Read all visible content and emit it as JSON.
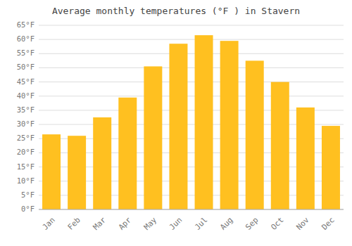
{
  "chart_data": {
    "type": "bar",
    "title": "Average monthly temperatures (°F ) in Stavern",
    "categories": [
      "Jan",
      "Feb",
      "Mar",
      "Apr",
      "May",
      "Jun",
      "Jul",
      "Aug",
      "Sep",
      "Oct",
      "Nov",
      "Dec"
    ],
    "values": [
      26.5,
      26.0,
      32.5,
      39.5,
      50.5,
      58.5,
      61.5,
      59.5,
      52.5,
      45.0,
      36.0,
      29.5
    ],
    "color": "#FFC020",
    "ylim": [
      0,
      65
    ],
    "yticks": [
      {
        "value": 0,
        "label": "0°F"
      },
      {
        "value": 5,
        "label": "5°F"
      },
      {
        "value": 10,
        "label": "10°F"
      },
      {
        "value": 15,
        "label": "15°F"
      },
      {
        "value": 20,
        "label": "20°F"
      },
      {
        "value": 25,
        "label": "25°F"
      },
      {
        "value": 30,
        "label": "30°F"
      },
      {
        "value": 35,
        "label": "35°F"
      },
      {
        "value": 40,
        "label": "40°F"
      },
      {
        "value": 45,
        "label": "45°F"
      },
      {
        "value": 50,
        "label": "50°F"
      },
      {
        "value": 55,
        "label": "55°F"
      },
      {
        "value": 60,
        "label": "60°F"
      },
      {
        "value": 65,
        "label": "65°F"
      }
    ],
    "grid": true
  }
}
